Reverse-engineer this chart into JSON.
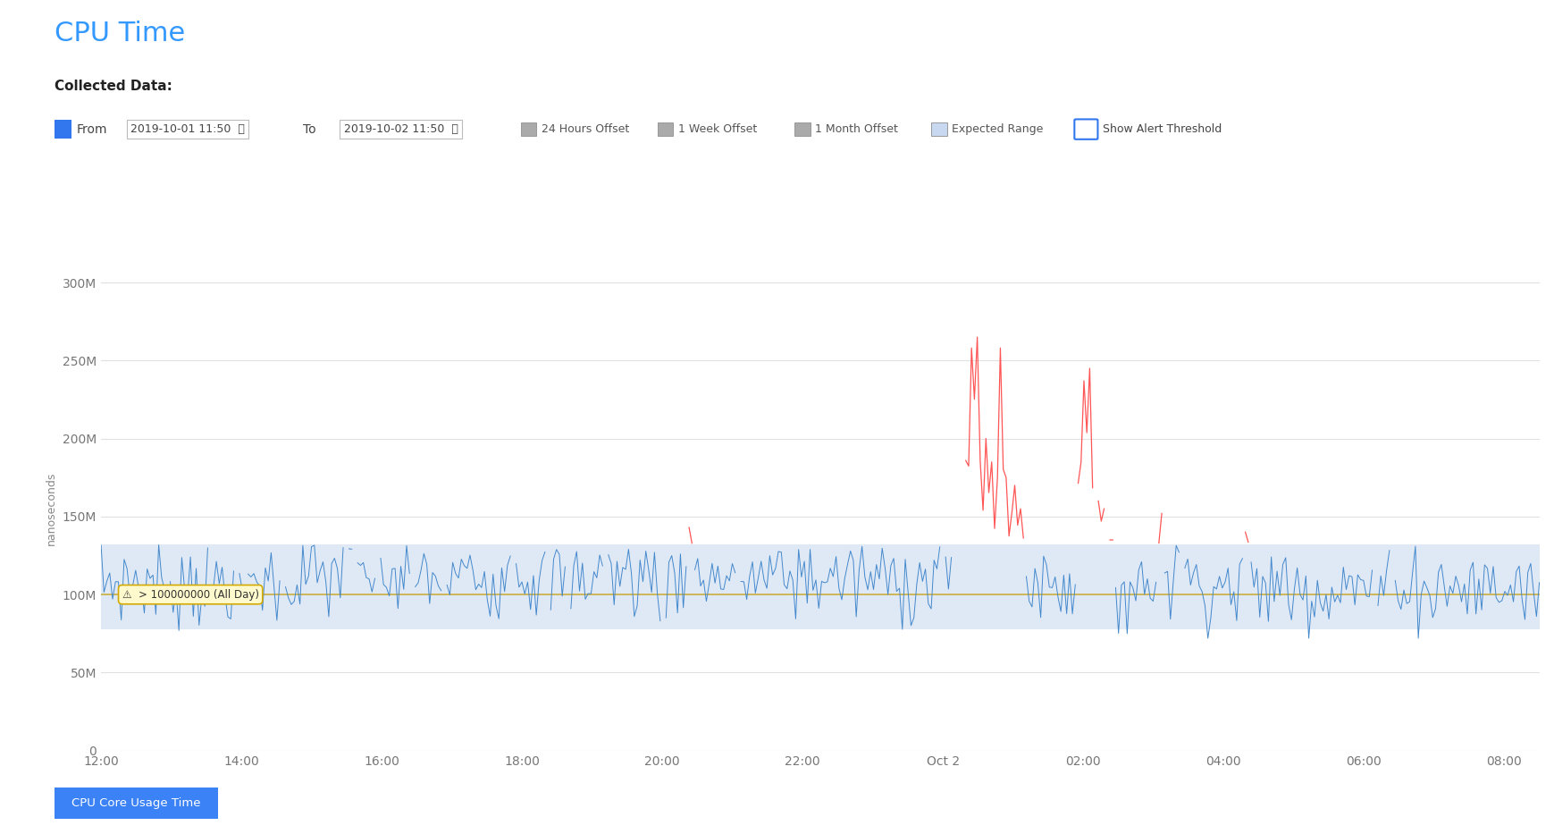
{
  "title": "CPU Time",
  "subtitle": "Collected Data:",
  "ylabel": "nanoseconds",
  "from_label": "From",
  "to_label": "To",
  "from_date": "2019-10-01 11:50",
  "to_date": "2019-10-02 11:50",
  "footer_label": "CPU Core Usage Time",
  "footer_bg": "#3b82f6",
  "footer_fg": "#ffffff",
  "title_color": "#3399ff",
  "background_color": "#ffffff",
  "chart_bg": "#ffffff",
  "expected_range_color": "#dae6f5",
  "expected_range_alpha": 0.85,
  "line_color_normal": "#4488cc",
  "line_color_alert": "#ff5555",
  "threshold_line_color": "#ccaa33",
  "threshold_value": 100000000,
  "expected_range_low": 78000000,
  "expected_range_high": 132000000,
  "alert_above": 132000000,
  "ylim": [
    0,
    310000000
  ],
  "yticks": [
    0,
    50000000,
    100000000,
    150000000,
    200000000,
    250000000,
    300000000
  ],
  "ytick_labels": [
    "0",
    "50M",
    "100M",
    "150M",
    "200M",
    "250M",
    "300M"
  ],
  "num_points": 500,
  "seed": 7
}
